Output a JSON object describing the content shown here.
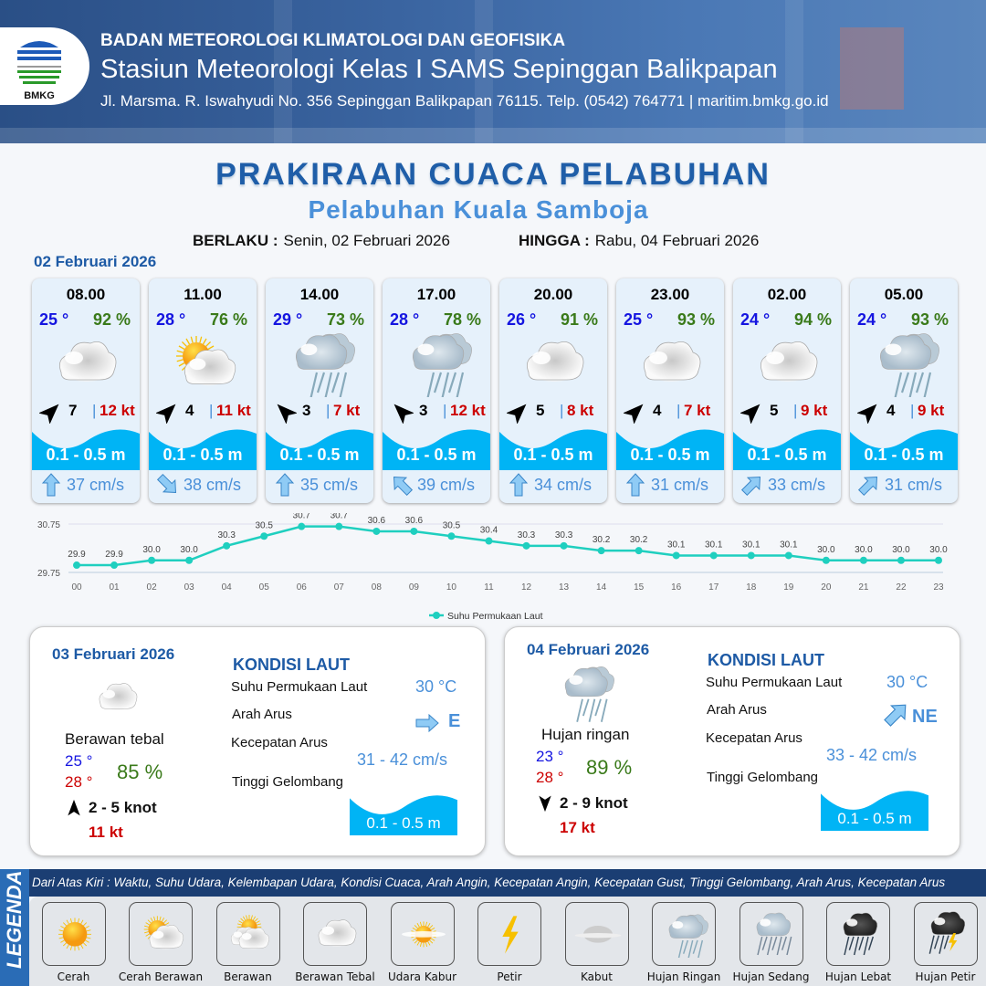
{
  "header": {
    "logo_text": "BMKG",
    "agency": "BADAN METEOROLOGI KLIMATOLOGI DAN GEOFISIKA",
    "station": "Stasiun Meteorologi Kelas I SAMS Sepinggan Balikpapan",
    "address": "Jl. Marsma. R. Iswahyudi No. 356 Sepinggan Balikpapan 76115. Telp. (0542) 764771 | maritim.bmkg.go.id"
  },
  "title": "PRAKIRAAN CUACA PELABUHAN",
  "subtitle": "Pelabuhan Kuala Samboja",
  "validity": {
    "from_label": "BERLAKU :",
    "from": "Senin, 02 Februari 2026",
    "to_label": "HINGGA :",
    "to": "Rabu, 04 Februari 2026"
  },
  "day1": {
    "date": "02 Februari 2026",
    "hours": [
      {
        "time": "08.00",
        "temp": "25 °",
        "hum": "92 %",
        "icon": "berawan-tebal",
        "wind_dir": "NE",
        "wind_speed": "7",
        "gust": "12 kt",
        "wave": "0.1 - 0.5 m",
        "current_dir": "N",
        "current_speed": "37 cm/s"
      },
      {
        "time": "11.00",
        "temp": "28 °",
        "hum": "76 %",
        "icon": "cerah-berawan",
        "wind_dir": "NE",
        "wind_speed": "4",
        "gust": "11 kt",
        "wave": "0.1 - 0.5 m",
        "current_dir": "SE",
        "current_speed": "38 cm/s"
      },
      {
        "time": "14.00",
        "temp": "29 °",
        "hum": "73 %",
        "icon": "hujan-ringan",
        "wind_dir": "NW",
        "wind_speed": "3",
        "gust": "7 kt",
        "wave": "0.1 - 0.5 m",
        "current_dir": "N",
        "current_speed": "35 cm/s"
      },
      {
        "time": "17.00",
        "temp": "28 °",
        "hum": "78 %",
        "icon": "hujan-ringan",
        "wind_dir": "NW",
        "wind_speed": "3",
        "gust": "12 kt",
        "wave": "0.1 - 0.5 m",
        "current_dir": "NW",
        "current_speed": "39 cm/s"
      },
      {
        "time": "20.00",
        "temp": "26 °",
        "hum": "91 %",
        "icon": "berawan-tebal",
        "wind_dir": "NE",
        "wind_speed": "5",
        "gust": "8 kt",
        "wave": "0.1 - 0.5 m",
        "current_dir": "N",
        "current_speed": "34 cm/s"
      },
      {
        "time": "23.00",
        "temp": "25 °",
        "hum": "93 %",
        "icon": "berawan-tebal",
        "wind_dir": "NE",
        "wind_speed": "4",
        "gust": "7 kt",
        "wave": "0.1 - 0.5 m",
        "current_dir": "N",
        "current_speed": "31 cm/s"
      },
      {
        "time": "02.00",
        "temp": "24 °",
        "hum": "94 %",
        "icon": "berawan-tebal",
        "wind_dir": "NE",
        "wind_speed": "5",
        "gust": "9 kt",
        "wave": "0.1 - 0.5 m",
        "current_dir": "NE",
        "current_speed": "33 cm/s"
      },
      {
        "time": "05.00",
        "temp": "24 °",
        "hum": "93 %",
        "icon": "hujan-ringan",
        "wind_dir": "NE",
        "wind_speed": "4",
        "gust": "9 kt",
        "wave": "0.1 - 0.5 m",
        "current_dir": "NE",
        "current_speed": "31 cm/s"
      }
    ]
  },
  "chart_data": {
    "type": "line",
    "x": [
      "00",
      "01",
      "02",
      "03",
      "04",
      "05",
      "06",
      "07",
      "08",
      "09",
      "10",
      "11",
      "12",
      "13",
      "14",
      "15",
      "16",
      "17",
      "18",
      "19",
      "20",
      "21",
      "22",
      "23"
    ],
    "series": [
      {
        "name": "Suhu Permukaan Laut",
        "values": [
          29.9,
          29.9,
          30.0,
          30.0,
          30.3,
          30.5,
          30.7,
          30.7,
          30.6,
          30.6,
          30.5,
          30.4,
          30.3,
          30.3,
          30.2,
          30.2,
          30.1,
          30.1,
          30.1,
          30.1,
          30.0,
          30.0,
          30.0,
          30.0
        ],
        "color": "#1fcfbf"
      }
    ],
    "yticks": [
      "29.75",
      "30.75"
    ],
    "ylim": [
      29.75,
      30.75
    ],
    "grid": true,
    "legend": "bottom"
  },
  "days": [
    {
      "date": "03 Februari 2026",
      "icon": "berawan-tebal",
      "condition": "Berawan tebal",
      "tmin": "25 °",
      "tmax": "28 °",
      "hum": "85 %",
      "wind_dir": "N",
      "wind": "2  - 5 knot",
      "gust": "11 kt",
      "sea": {
        "title": "KONDISI LAUT",
        "sst_label": "Suhu Permukaan Laut",
        "sst": "30 °C",
        "dir_label": "Arah Arus",
        "dir": "E",
        "speed_label": "Kecepatan Arus",
        "speed": "31  - 42 cm/s",
        "wave_label": "Tinggi Gelombang",
        "wave": "0.1 - 0.5 m"
      }
    },
    {
      "date": "04 Februari 2026",
      "icon": "hujan-ringan",
      "condition": "Hujan ringan",
      "tmin": "23 °",
      "tmax": "28 °",
      "hum": "89 %",
      "wind_dir": "S",
      "wind": "2  - 9 knot",
      "gust": "17 kt",
      "sea": {
        "title": "KONDISI LAUT",
        "sst_label": "Suhu Permukaan Laut",
        "sst": "30 °C",
        "dir_label": "Arah Arus",
        "dir": "NE",
        "speed_label": "Kecepatan Arus",
        "speed": "33  - 42 cm/s",
        "wave_label": "Tinggi Gelombang",
        "wave": "0.1 - 0.5 m"
      }
    }
  ],
  "legend": {
    "title": "LEGENDA",
    "description": "Dari Atas Kiri : Waktu, Suhu Udara, Kelembapan Udara, Kondisi Cuaca, Arah Angin, Kecepatan Angin, Kecepatan Gust, Tinggi Gelombang, Arah Arus, Kecepatan Arus",
    "items": [
      {
        "icon": "cerah",
        "label": "Cerah"
      },
      {
        "icon": "cerah-berawan",
        "label": "Cerah Berawan"
      },
      {
        "icon": "berawan",
        "label": "Berawan"
      },
      {
        "icon": "berawan-tebal",
        "label": "Berawan Tebal"
      },
      {
        "icon": "udara-kabur",
        "label": "Udara Kabur"
      },
      {
        "icon": "petir",
        "label": "Petir"
      },
      {
        "icon": "kabut",
        "label": "Kabut"
      },
      {
        "icon": "hujan-ringan",
        "label": "Hujan Ringan"
      },
      {
        "icon": "hujan-sedang",
        "label": "Hujan Sedang"
      },
      {
        "icon": "hujan-lebat",
        "label": "Hujan Lebat"
      },
      {
        "icon": "hujan-petir",
        "label": "Hujan Petir"
      }
    ]
  },
  "colors": {
    "brand": "#1f5ea8",
    "accent": "#4a90d9",
    "wave": "#00b4f5",
    "temp": "#1515e0",
    "humidity": "#3a7a1a",
    "gust": "#cc0000",
    "sst_line": "#1fcfbf"
  }
}
